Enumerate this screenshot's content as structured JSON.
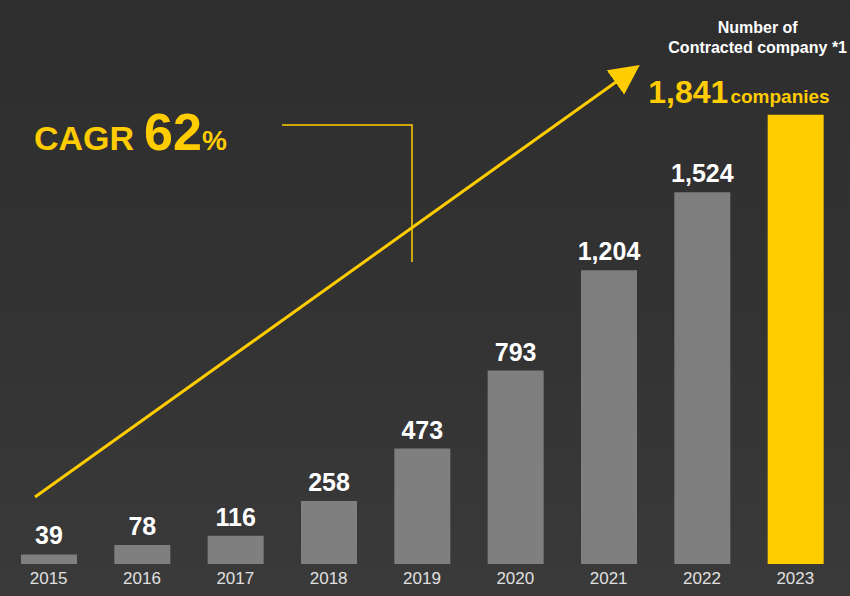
{
  "chart_data": {
    "type": "bar",
    "categories": [
      "2015",
      "2016",
      "2017",
      "2018",
      "2019",
      "2020",
      "2021",
      "2022",
      "2023"
    ],
    "values": [
      39,
      78,
      116,
      258,
      473,
      793,
      1204,
      1524,
      1841
    ],
    "value_labels": [
      "39",
      "78",
      "116",
      "258",
      "473",
      "793",
      "1,204",
      "1,524",
      "1,841"
    ],
    "colors": [
      "#8c8c8c",
      "#8c8c8c",
      "#8c8c8c",
      "#8c8c8c",
      "#8c8c8c",
      "#8c8c8c",
      "#8c8c8c",
      "#8c8c8c",
      "#ffcc00"
    ],
    "ylim": [
      0,
      2000
    ],
    "data_labels": true,
    "tick_labels": "x",
    "grid": false,
    "annotations": {
      "header": "Number of Contracted company *1",
      "unit": "companies",
      "cagr": "CAGR 62%"
    }
  }
}
